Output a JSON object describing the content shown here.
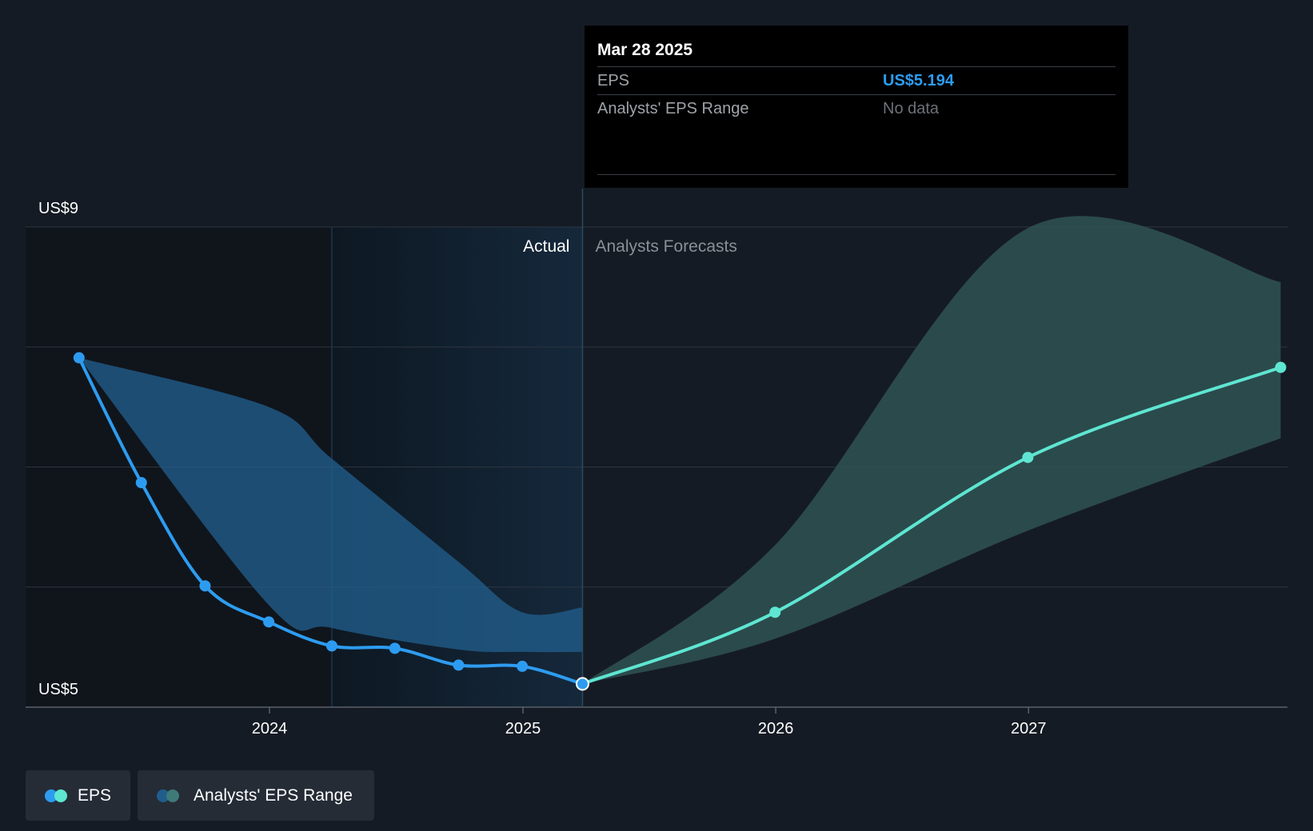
{
  "tooltip": {
    "date": "Mar 28 2025",
    "eps_label": "EPS",
    "eps_value": "US$5.194",
    "range_label": "Analysts' EPS Range",
    "range_value": "No data"
  },
  "labels": {
    "actual": "Actual",
    "forecast": "Analysts Forecasts"
  },
  "legend": {
    "eps_label": "EPS",
    "range_label": "Analysts' EPS Range"
  },
  "colors": {
    "background": "#151b24",
    "eps_actual": "#2d9cf0",
    "eps_forecast": "#5ee6d2",
    "range_actual": "#215d8c",
    "range_forecast": "#2f5254"
  },
  "chart_data": {
    "type": "line",
    "y_tick_labels": [
      "US$9",
      "US$5"
    ],
    "ylim": [
      5,
      9
    ],
    "x_tick_labels": [
      "2024",
      "2025",
      "2026",
      "2027"
    ],
    "divider_date": "2025-03-28",
    "grid": true,
    "series": [
      {
        "name": "EPS",
        "segment": "actual",
        "points": [
          {
            "x": "2023-04-01",
            "y": 7.91
          },
          {
            "x": "2023-06-30",
            "y": 6.87
          },
          {
            "x": "2023-09-30",
            "y": 6.01
          },
          {
            "x": "2023-12-31",
            "y": 5.71
          },
          {
            "x": "2024-03-31",
            "y": 5.51
          },
          {
            "x": "2024-06-30",
            "y": 5.49
          },
          {
            "x": "2024-09-30",
            "y": 5.35
          },
          {
            "x": "2024-12-31",
            "y": 5.34
          },
          {
            "x": "2025-03-28",
            "y": 5.194
          }
        ]
      },
      {
        "name": "EPS",
        "segment": "forecast",
        "points": [
          {
            "x": "2025-03-28",
            "y": 5.194
          },
          {
            "x": "2025-12-31",
            "y": 5.79
          },
          {
            "x": "2026-12-31",
            "y": 7.08
          },
          {
            "x": "2027-12-31",
            "y": 7.83
          }
        ]
      }
    ],
    "range_bands": [
      {
        "name": "Analysts' EPS Range",
        "segment": "actual",
        "points": [
          {
            "x": "2023-04-01",
            "low": 7.91,
            "high": 7.91
          },
          {
            "x": "2023-12-31",
            "low": 5.85,
            "high": 7.5
          },
          {
            "x": "2024-03-31",
            "low": 5.66,
            "high": 7.07
          },
          {
            "x": "2024-09-30",
            "low": 5.48,
            "high": 6.21
          },
          {
            "x": "2024-12-31",
            "low": 5.46,
            "high": 5.79
          },
          {
            "x": "2025-03-28",
            "low": 5.46,
            "high": 5.83
          }
        ]
      },
      {
        "name": "Analysts' EPS Range",
        "segment": "forecast",
        "points": [
          {
            "x": "2025-03-28",
            "low": 5.194,
            "high": 5.194
          },
          {
            "x": "2025-12-31",
            "low": 5.57,
            "high": 6.35
          },
          {
            "x": "2026-12-31",
            "low": 6.47,
            "high": 8.99
          },
          {
            "x": "2027-12-31",
            "low": 7.24,
            "high": 8.54
          }
        ]
      }
    ]
  }
}
